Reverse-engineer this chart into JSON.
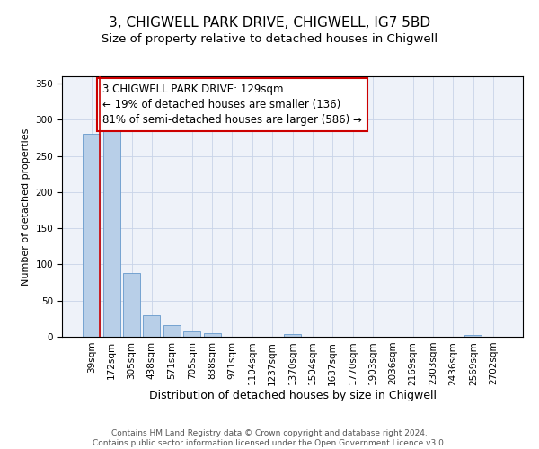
{
  "title1": "3, CHIGWELL PARK DRIVE, CHIGWELL, IG7 5BD",
  "title2": "Size of property relative to detached houses in Chigwell",
  "xlabel": "Distribution of detached houses by size in Chigwell",
  "ylabel": "Number of detached properties",
  "categories": [
    "39sqm",
    "172sqm",
    "305sqm",
    "438sqm",
    "571sqm",
    "705sqm",
    "838sqm",
    "971sqm",
    "1104sqm",
    "1237sqm",
    "1370sqm",
    "1504sqm",
    "1637sqm",
    "1770sqm",
    "1903sqm",
    "2036sqm",
    "2169sqm",
    "2303sqm",
    "2436sqm",
    "2569sqm",
    "2702sqm"
  ],
  "values": [
    280,
    290,
    88,
    30,
    16,
    8,
    5,
    0,
    0,
    0,
    4,
    0,
    0,
    0,
    0,
    0,
    0,
    0,
    0,
    2,
    0
  ],
  "bar_color": "#b8cfe8",
  "bar_edge_color": "#6699cc",
  "annotation_text": "3 CHIGWELL PARK DRIVE: 129sqm\n← 19% of detached houses are smaller (136)\n81% of semi-detached houses are larger (586) →",
  "annotation_box_color": "#ffffff",
  "annotation_box_edge_color": "#cc0000",
  "vline_color": "#cc0000",
  "ylim": [
    0,
    360
  ],
  "yticks": [
    0,
    50,
    100,
    150,
    200,
    250,
    300,
    350
  ],
  "grid_color": "#c8d4e8",
  "footer_text": "Contains HM Land Registry data © Crown copyright and database right 2024.\nContains public sector information licensed under the Open Government Licence v3.0.",
  "title1_fontsize": 11,
  "title2_fontsize": 9.5,
  "xlabel_fontsize": 9,
  "ylabel_fontsize": 8,
  "tick_fontsize": 7.5,
  "annotation_fontsize": 8.5,
  "footer_fontsize": 6.5
}
